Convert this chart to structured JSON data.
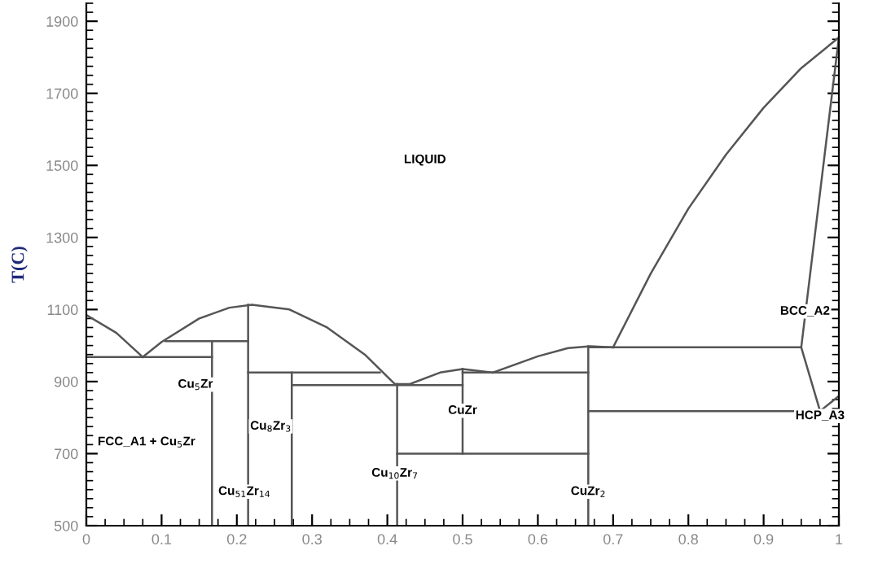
{
  "chart_data": {
    "type": "line",
    "ylabel": "T(C)",
    "xlim": [
      0,
      1
    ],
    "ylim": [
      500,
      1950
    ],
    "xticks": [
      0,
      0.1,
      0.2,
      0.3,
      0.4,
      0.5,
      0.6,
      0.7,
      0.8,
      0.9,
      1
    ],
    "yticks": [
      500,
      700,
      900,
      1100,
      1300,
      1500,
      1700,
      1900
    ],
    "grid": false,
    "marker": "none",
    "line_style": "solid",
    "series": [
      {
        "color": "#555555",
        "x": [
          0,
          0.04,
          0.075
        ],
        "values": [
          1085,
          1035,
          968
        ]
      },
      {
        "color": "#555555",
        "x": [
          0.075,
          0.1,
          0.15,
          0.19,
          0.22,
          0.27,
          0.32,
          0.37,
          0.41
        ],
        "values": [
          968,
          1010,
          1075,
          1105,
          1113,
          1100,
          1050,
          975,
          893
        ]
      },
      {
        "color": "#555555",
        "x": [
          0.41,
          0.43,
          0.47,
          0.5,
          0.54
        ],
        "values": [
          893,
          893,
          925,
          935,
          925
        ]
      },
      {
        "color": "#555555",
        "x": [
          0.54,
          0.6,
          0.64,
          0.67,
          0.7
        ],
        "values": [
          925,
          970,
          993,
          998,
          995
        ]
      },
      {
        "color": "#555555",
        "x": [
          0.7,
          0.75,
          0.8,
          0.85,
          0.9,
          0.95,
          1.0,
          0.95,
          0.975,
          1.0
        ],
        "values": [
          995,
          1200,
          1380,
          1530,
          1660,
          1770,
          1855,
          995,
          818,
          860
        ]
      },
      {
        "color": "#555555",
        "x": [
          0,
          0.167
        ],
        "values": [
          968,
          968
        ]
      },
      {
        "color": "#555555",
        "x": [
          0.105,
          0.215
        ],
        "values": [
          1012,
          1012
        ]
      },
      {
        "color": "#555555",
        "x": [
          0.167,
          0.167
        ],
        "values": [
          500,
          1012
        ]
      },
      {
        "color": "#555555",
        "x": [
          0.215,
          0.215
        ],
        "values": [
          500,
          1113
        ]
      },
      {
        "color": "#555555",
        "x": [
          0.215,
          0.39
        ],
        "values": [
          925,
          925
        ]
      },
      {
        "color": "#555555",
        "x": [
          0.273,
          0.273
        ],
        "values": [
          500,
          925
        ]
      },
      {
        "color": "#555555",
        "x": [
          0.273,
          0.5
        ],
        "values": [
          890,
          890
        ]
      },
      {
        "color": "#555555",
        "x": [
          0.413,
          0.413
        ],
        "values": [
          500,
          893
        ]
      },
      {
        "color": "#555555",
        "x": [
          0.5,
          0.5
        ],
        "values": [
          700,
          935
        ]
      },
      {
        "color": "#555555",
        "x": [
          0.413,
          0.667
        ],
        "values": [
          700,
          700
        ]
      },
      {
        "color": "#555555",
        "x": [
          0.5,
          0.667
        ],
        "values": [
          925,
          925
        ]
      },
      {
        "color": "#555555",
        "x": [
          0.667,
          0.667
        ],
        "values": [
          500,
          998
        ]
      },
      {
        "color": "#555555",
        "x": [
          0.667,
          0.95
        ],
        "values": [
          995,
          995
        ]
      },
      {
        "color": "#555555",
        "x": [
          0.667,
          1.0
        ],
        "values": [
          818,
          818
        ]
      }
    ],
    "annotations": [
      "LIQUID",
      "Cu$_{5}$Zr",
      "FCC_A1 + Cu$_{5}$Zr",
      "Cu$_{8}$Zr$_{3}$",
      "Cu$_{51}$Zr$_{14}$",
      "Cu$_{10}$Zr$_{7}$",
      "CuZr",
      "CuZr$_{2}$",
      "BCC_A2",
      "HCP_A3"
    ]
  }
}
